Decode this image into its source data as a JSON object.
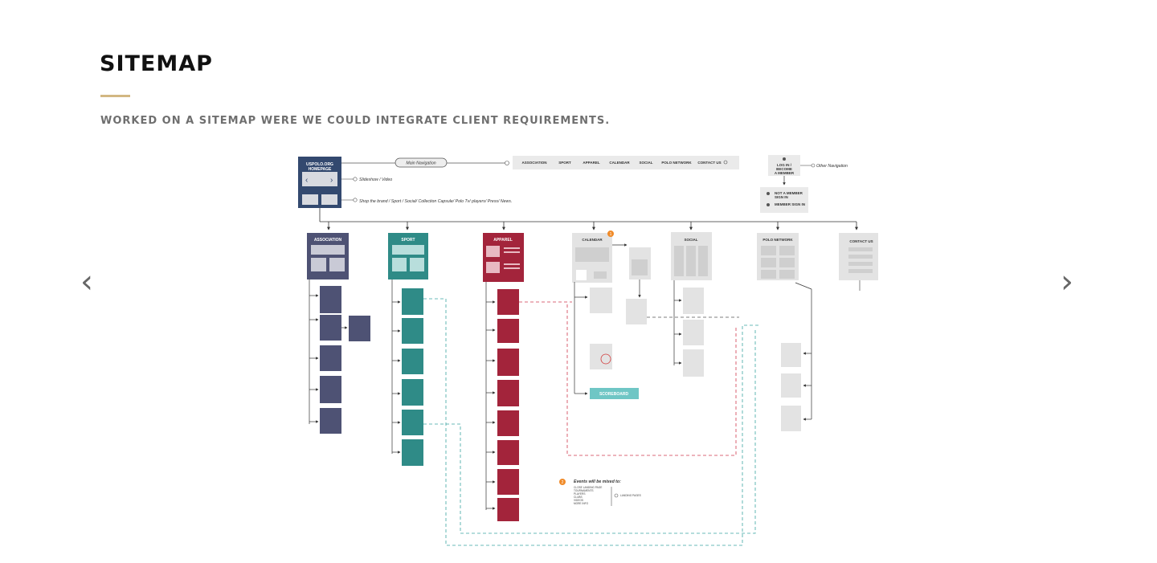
{
  "page": {
    "title": "SITEMAP",
    "subtitle": "WORKED ON A SITEMAP WERE WE COULD INTEGRATE CLIENT REQUIREMENTS.",
    "prev_arrow": "‹",
    "next_arrow": "›"
  },
  "diagram": {
    "homepage": {
      "title_line1": "USPOLO.ORG",
      "title_line2": "HOMEPAGE"
    },
    "main_nav_label": "Main Navigation",
    "nav_items": [
      "ASSOCIATION",
      "SPORT",
      "APPAREL",
      "CALENDAR",
      "SOCIAL",
      "POLO NETWORK",
      "CONTACT US"
    ],
    "slideshow_label": "Slideshow / Video",
    "shop_label": "Shop the brand / Sport / Social/ Collection Capsule/ Polo Tv/ players/ Press/ News.",
    "login": {
      "line1": "LOG IN /",
      "line2": "BECOME",
      "line3": "A MEMBER"
    },
    "other_nav_label": "Other Navigation",
    "member_options": {
      "not_member_line1": "NOT A MEMBER",
      "not_member_line2": "SIGN IN",
      "member_signin": "MEMBER SIGN IN"
    },
    "sections": {
      "association": "ASSOCIATION",
      "sport": "SPORT",
      "apparel": "APPAREL",
      "calendar": "CALENDAR",
      "social": "SOCIAL",
      "polo_network": "POLO NETWORK",
      "contact_us": "CONTACT US"
    },
    "calendar_badge": "1",
    "scoreboard": "SCOREBOARD",
    "events_badge": "2",
    "events_note": "Events will be mixed to:",
    "events_list": [
      "CLOSE LANDING PAGE",
      "TOURNAMENTS",
      "PLAYERS",
      "CLUBS",
      "VIDEOS",
      "MORE INFO"
    ],
    "landing_pages": "LANDING PAGES"
  }
}
